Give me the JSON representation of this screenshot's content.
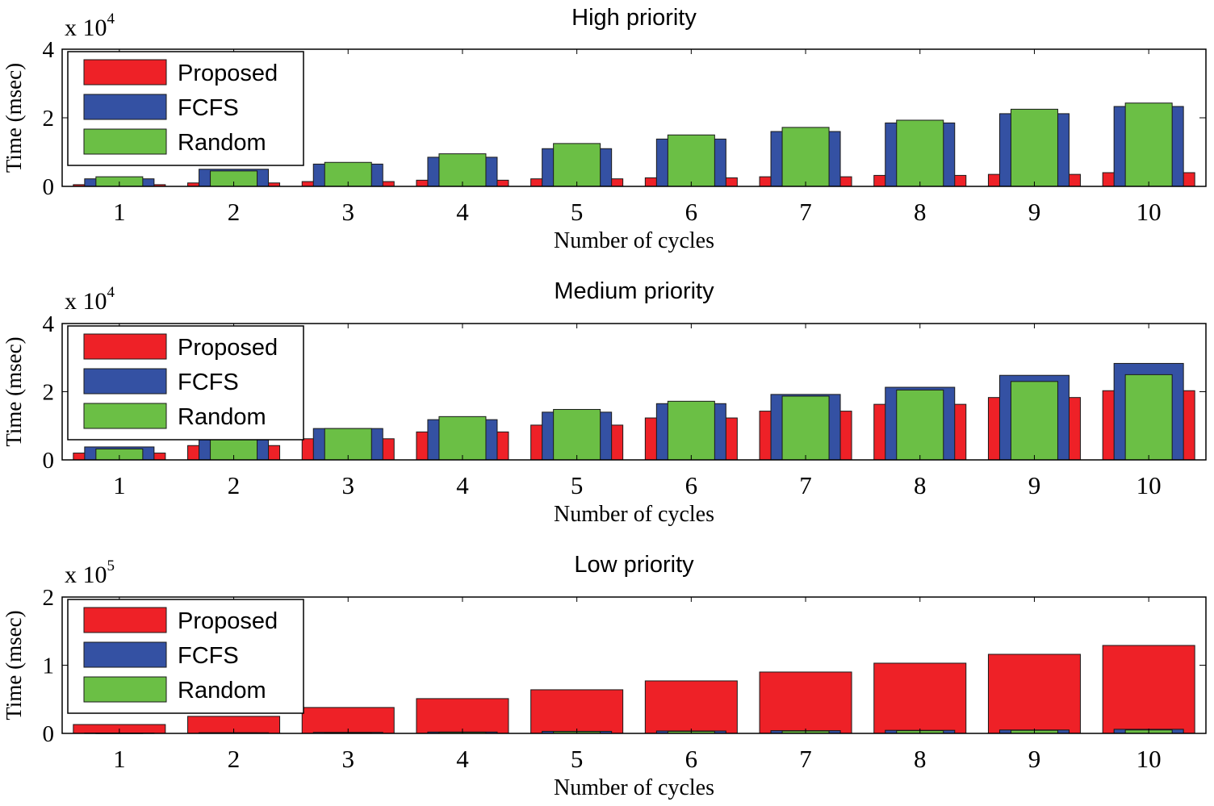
{
  "chart_data": [
    {
      "type": "bar",
      "title": "High priority",
      "xlabel": "Number of cycles",
      "ylabel": "Time (msec)",
      "categories": [
        "1",
        "2",
        "3",
        "4",
        "5",
        "6",
        "7",
        "8",
        "9",
        "10"
      ],
      "ylim": [
        0,
        4
      ],
      "yticks": [
        "0",
        "2",
        "4"
      ],
      "exponent": {
        "base": "x 10",
        "power": "4"
      },
      "legend_position": "top-left",
      "series": [
        {
          "name": "Proposed",
          "color": "#ee2127",
          "values": [
            0.05,
            0.1,
            0.14,
            0.18,
            0.22,
            0.25,
            0.28,
            0.32,
            0.35,
            0.4
          ]
        },
        {
          "name": "FCFS",
          "color": "#3451a3",
          "values": [
            0.22,
            0.5,
            0.65,
            0.85,
            1.1,
            1.38,
            1.6,
            1.85,
            2.12,
            2.33
          ]
        },
        {
          "name": "Random",
          "color": "#6bbf45",
          "values": [
            0.28,
            0.45,
            0.7,
            0.95,
            1.25,
            1.5,
            1.72,
            1.93,
            2.25,
            2.43
          ]
        }
      ]
    },
    {
      "type": "bar",
      "title": "Medium priority",
      "xlabel": "Number of cycles",
      "ylabel": "Time (msec)",
      "categories": [
        "1",
        "2",
        "3",
        "4",
        "5",
        "6",
        "7",
        "8",
        "9",
        "10"
      ],
      "ylim": [
        0,
        4
      ],
      "yticks": [
        "0",
        "2",
        "4"
      ],
      "exponent": {
        "base": "x 10",
        "power": "4"
      },
      "legend_position": "top-left",
      "series": [
        {
          "name": "Proposed",
          "color": "#ee2127",
          "values": [
            0.2,
            0.42,
            0.62,
            0.82,
            1.02,
            1.23,
            1.43,
            1.63,
            1.83,
            2.03
          ]
        },
        {
          "name": "FCFS",
          "color": "#3451a3",
          "values": [
            0.38,
            0.7,
            0.92,
            1.18,
            1.4,
            1.65,
            1.92,
            2.13,
            2.48,
            2.83
          ]
        },
        {
          "name": "Random",
          "color": "#6bbf45",
          "values": [
            0.32,
            0.6,
            0.92,
            1.27,
            1.48,
            1.72,
            1.87,
            2.05,
            2.3,
            2.5
          ]
        }
      ]
    },
    {
      "type": "bar",
      "title": "Low priority",
      "xlabel": "Number of cycles",
      "ylabel": "Time (msec)",
      "categories": [
        "1",
        "2",
        "3",
        "4",
        "5",
        "6",
        "7",
        "8",
        "9",
        "10"
      ],
      "ylim": [
        0,
        2
      ],
      "yticks": [
        "0",
        "1",
        "2"
      ],
      "exponent": {
        "base": "x 10",
        "power": "5"
      },
      "legend_position": "top-left",
      "series": [
        {
          "name": "Proposed",
          "color": "#ee2127",
          "values": [
            0.13,
            0.25,
            0.38,
            0.51,
            0.64,
            0.77,
            0.9,
            1.03,
            1.16,
            1.29
          ]
        },
        {
          "name": "FCFS",
          "color": "#3451a3",
          "values": [
            0.005,
            0.01,
            0.015,
            0.02,
            0.03,
            0.035,
            0.04,
            0.045,
            0.05,
            0.06
          ]
        },
        {
          "name": "Random",
          "color": "#6bbf45",
          "values": [
            0.004,
            0.008,
            0.012,
            0.018,
            0.025,
            0.03,
            0.035,
            0.04,
            0.045,
            0.05
          ]
        }
      ]
    }
  ]
}
